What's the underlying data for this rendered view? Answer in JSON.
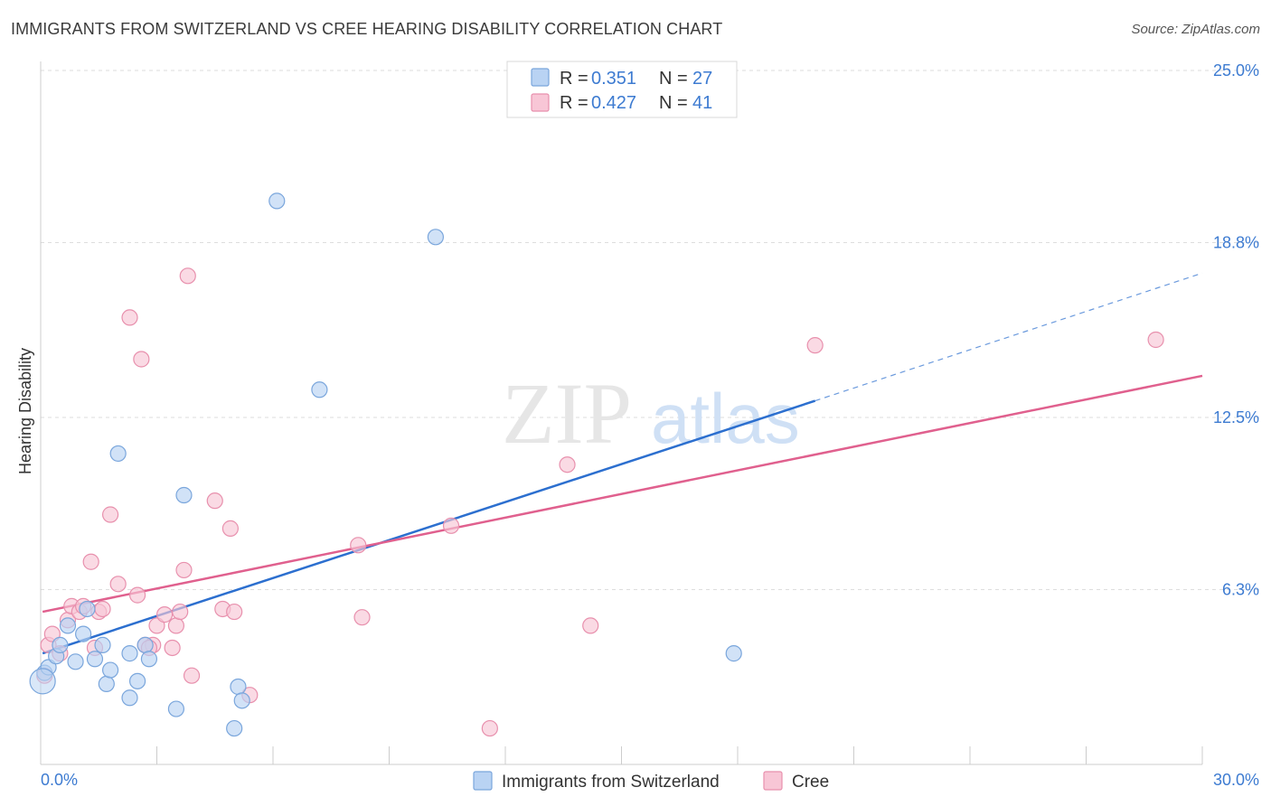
{
  "title": "IMMIGRANTS FROM SWITZERLAND VS CREE HEARING DISABILITY CORRELATION CHART",
  "source": "Source: ZipAtlas.com",
  "watermark": {
    "zip": "ZIP",
    "atlas": "atlas"
  },
  "colors": {
    "blue_fill": "#b9d3f3",
    "blue_stroke": "#7aa6dc",
    "blue_line": "#2c6fcf",
    "pink_fill": "#f8c6d6",
    "pink_stroke": "#e890ad",
    "pink_line": "#e0608e",
    "tick_text": "#3d7bd1",
    "grid": "#dddddd"
  },
  "stats_legend": [
    {
      "r_label": "R =",
      "r_value": "0.351",
      "n_label": "N =",
      "n_value": "27",
      "color": "blue"
    },
    {
      "r_label": "R =",
      "r_value": "0.427",
      "n_label": "N =",
      "n_value": "41",
      "color": "pink"
    }
  ],
  "chart_data": {
    "type": "scatter",
    "title": "IMMIGRANTS FROM SWITZERLAND VS CREE HEARING DISABILITY CORRELATION CHART",
    "xlabel": "",
    "ylabel": "Hearing Disability",
    "xlim": [
      0,
      30
    ],
    "ylim": [
      0,
      25
    ],
    "x_tick_labels": [
      "0.0%",
      "30.0%"
    ],
    "y_ticks": [
      6.3,
      12.5,
      18.8,
      25.0
    ],
    "y_tick_labels": [
      "6.3%",
      "12.5%",
      "18.8%",
      "25.0%"
    ],
    "grid": true,
    "legend_position": "bottom",
    "series": [
      {
        "name": "Immigrants from Switzerland",
        "color": "blue",
        "points": [
          [
            0.1,
            3.3
          ],
          [
            0.2,
            3.5
          ],
          [
            0.4,
            3.9
          ],
          [
            0.5,
            4.3
          ],
          [
            0.7,
            5.0
          ],
          [
            0.9,
            3.7
          ],
          [
            1.1,
            4.7
          ],
          [
            1.2,
            5.6
          ],
          [
            1.4,
            3.8
          ],
          [
            1.6,
            4.3
          ],
          [
            1.7,
            2.9
          ],
          [
            1.8,
            3.4
          ],
          [
            2.0,
            11.2
          ],
          [
            2.3,
            4.0
          ],
          [
            2.3,
            2.4
          ],
          [
            2.5,
            3.0
          ],
          [
            2.7,
            4.3
          ],
          [
            2.8,
            3.8
          ],
          [
            3.5,
            2.0
          ],
          [
            3.7,
            9.7
          ],
          [
            5.0,
            1.3
          ],
          [
            5.1,
            2.8
          ],
          [
            5.2,
            2.3
          ],
          [
            6.1,
            20.3
          ],
          [
            7.2,
            13.5
          ],
          [
            10.2,
            19.0
          ],
          [
            17.9,
            4.0
          ]
        ],
        "trend": {
          "x0": 0.05,
          "y0": 4.0,
          "x1": 20.0,
          "y1": 13.1,
          "dashed_to_x": 30.0,
          "dashed_to_y": 17.7
        }
      },
      {
        "name": "Cree",
        "color": "pink",
        "points": [
          [
            0.2,
            4.3
          ],
          [
            0.3,
            4.7
          ],
          [
            0.5,
            4.0
          ],
          [
            0.7,
            5.2
          ],
          [
            0.8,
            5.7
          ],
          [
            1.0,
            5.5
          ],
          [
            1.1,
            5.7
          ],
          [
            1.3,
            7.3
          ],
          [
            1.4,
            4.2
          ],
          [
            1.5,
            5.5
          ],
          [
            1.6,
            5.6
          ],
          [
            1.8,
            9.0
          ],
          [
            2.0,
            6.5
          ],
          [
            2.3,
            16.1
          ],
          [
            2.5,
            6.1
          ],
          [
            2.6,
            14.6
          ],
          [
            2.7,
            4.3
          ],
          [
            2.9,
            4.3
          ],
          [
            3.0,
            5.0
          ],
          [
            3.2,
            5.4
          ],
          [
            3.4,
            4.2
          ],
          [
            3.5,
            5.0
          ],
          [
            3.6,
            5.5
          ],
          [
            3.7,
            7.0
          ],
          [
            3.8,
            17.6
          ],
          [
            3.9,
            3.2
          ],
          [
            4.5,
            9.5
          ],
          [
            4.7,
            5.6
          ],
          [
            4.9,
            8.5
          ],
          [
            5.0,
            5.5
          ],
          [
            5.4,
            2.5
          ],
          [
            8.2,
            7.9
          ],
          [
            8.3,
            5.3
          ],
          [
            10.6,
            8.6
          ],
          [
            11.6,
            1.3
          ],
          [
            13.6,
            10.8
          ],
          [
            14.2,
            5.0
          ],
          [
            20.0,
            15.1
          ],
          [
            28.8,
            15.3
          ],
          [
            0.1,
            3.2
          ],
          [
            2.8,
            4.2
          ]
        ],
        "trend": {
          "x0": 0.05,
          "y0": 5.5,
          "x1": 30.0,
          "y1": 14.0
        }
      }
    ]
  },
  "bottom_legend": [
    {
      "label": "Immigrants from Switzerland",
      "color": "blue"
    },
    {
      "label": "Cree",
      "color": "pink"
    }
  ]
}
